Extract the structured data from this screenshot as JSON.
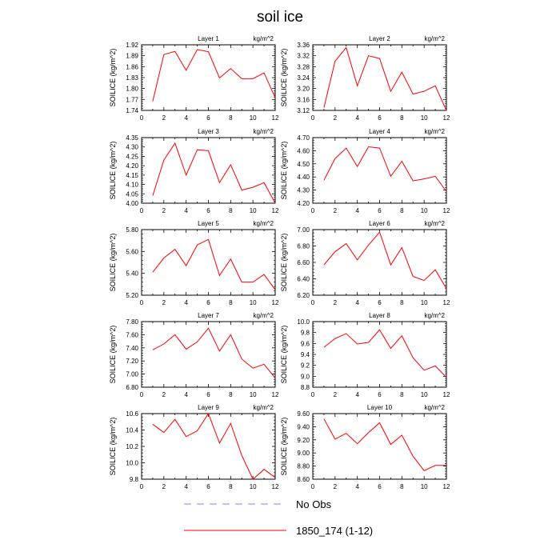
{
  "title": "soil ice",
  "legend": {
    "entries": [
      {
        "label": "No Obs",
        "style": "dashed",
        "color": "#8080ff"
      },
      {
        "label": "1850_174 (1-12)",
        "style": "solid",
        "color": "#ff0000"
      }
    ]
  },
  "chart_data": [
    {
      "type": "line",
      "title": "Layer 1",
      "units": "kg/m^2",
      "ylabel": "SOILICE  (kg/m^2)",
      "xlim": [
        0,
        12
      ],
      "xticks": [
        0,
        2,
        4,
        6,
        8,
        10,
        12
      ],
      "ylim": [
        1.74,
        1.92
      ],
      "yticks": [
        "1.74",
        "1.77",
        "1.80",
        "1.83",
        "1.86",
        "1.89",
        "1.92"
      ],
      "series": [
        {
          "x": [
            1,
            2,
            3,
            4,
            5,
            6,
            7,
            8,
            9,
            10,
            11,
            12
          ],
          "values": [
            1.765,
            1.893,
            1.902,
            1.85,
            1.907,
            1.901,
            1.829,
            1.855,
            1.827,
            1.827,
            1.843,
            1.775
          ]
        }
      ]
    },
    {
      "type": "line",
      "title": "Layer 2",
      "units": "kg/m^2",
      "ylabel": "SOILICE  (kg/m^2)",
      "xlim": [
        0,
        12
      ],
      "xticks": [
        0,
        2,
        4,
        6,
        8,
        10,
        12
      ],
      "ylim": [
        3.12,
        3.36
      ],
      "yticks": [
        "3.12",
        "3.16",
        "3.20",
        "3.24",
        "3.28",
        "3.32",
        "3.36"
      ],
      "series": [
        {
          "x": [
            1,
            2,
            3,
            4,
            5,
            6,
            7,
            8,
            9,
            10,
            11,
            12
          ],
          "values": [
            3.13,
            3.3,
            3.35,
            3.21,
            3.32,
            3.31,
            3.19,
            3.26,
            3.18,
            3.19,
            3.21,
            3.12
          ]
        }
      ]
    },
    {
      "type": "line",
      "title": "Layer 3",
      "units": "kg/m^2",
      "ylabel": "SOILICE  (kg/m^2)",
      "xlim": [
        0,
        12
      ],
      "xticks": [
        0,
        2,
        4,
        6,
        8,
        10,
        12
      ],
      "ylim": [
        4.0,
        4.35
      ],
      "yticks": [
        "4.00",
        "4.05",
        "4.10",
        "4.15",
        "4.20",
        "4.25",
        "4.30",
        "4.35"
      ],
      "series": [
        {
          "x": [
            1,
            2,
            3,
            4,
            5,
            6,
            7,
            8,
            9,
            10,
            11,
            12
          ],
          "values": [
            4.04,
            4.23,
            4.32,
            4.15,
            4.285,
            4.28,
            4.11,
            4.205,
            4.07,
            4.085,
            4.11,
            4.0
          ]
        }
      ]
    },
    {
      "type": "line",
      "title": "Layer 4",
      "units": "kg/m^2",
      "ylabel": "SOILICE  (kg/m^2)",
      "xlim": [
        0,
        12
      ],
      "xticks": [
        0,
        2,
        4,
        6,
        8,
        10,
        12
      ],
      "ylim": [
        4.2,
        4.7
      ],
      "yticks": [
        "4.20",
        "4.30",
        "4.40",
        "4.50",
        "4.60",
        "4.70"
      ],
      "series": [
        {
          "x": [
            1,
            2,
            3,
            4,
            5,
            6,
            7,
            8,
            9,
            10,
            11,
            12
          ],
          "values": [
            4.375,
            4.54,
            4.62,
            4.48,
            4.63,
            4.62,
            4.405,
            4.52,
            4.37,
            4.385,
            4.405,
            4.29
          ]
        }
      ]
    },
    {
      "type": "line",
      "title": "Layer 5",
      "units": "kg/m^2",
      "ylabel": "SOILICE  (kg/m^2)",
      "xlim": [
        0,
        12
      ],
      "xticks": [
        0,
        2,
        4,
        6,
        8,
        10,
        12
      ],
      "ylim": [
        5.2,
        5.8
      ],
      "yticks": [
        "5.20",
        "5.40",
        "5.60",
        "5.80"
      ],
      "series": [
        {
          "x": [
            1,
            2,
            3,
            4,
            5,
            6,
            7,
            8,
            9,
            10,
            11,
            12
          ],
          "values": [
            5.41,
            5.54,
            5.62,
            5.47,
            5.66,
            5.71,
            5.38,
            5.53,
            5.32,
            5.32,
            5.39,
            5.25
          ]
        }
      ]
    },
    {
      "type": "line",
      "title": "Layer 6",
      "units": "kg/m^2",
      "ylabel": "SOILICE  (kg/m^2)",
      "xlim": [
        0,
        12
      ],
      "xticks": [
        0,
        2,
        4,
        6,
        8,
        10,
        12
      ],
      "ylim": [
        6.2,
        7.0
      ],
      "yticks": [
        "6.20",
        "6.40",
        "6.60",
        "6.80",
        "7.00"
      ],
      "series": [
        {
          "x": [
            1,
            2,
            3,
            4,
            5,
            6,
            7,
            8,
            9,
            10,
            11,
            12
          ],
          "values": [
            6.57,
            6.73,
            6.83,
            6.63,
            6.81,
            6.97,
            6.57,
            6.78,
            6.43,
            6.38,
            6.51,
            6.28
          ]
        }
      ]
    },
    {
      "type": "line",
      "title": "Layer 7",
      "units": "kg/m^2",
      "ylabel": "SOILICE  (kg/m^2)",
      "xlim": [
        0,
        12
      ],
      "xticks": [
        0,
        2,
        4,
        6,
        8,
        10,
        12
      ],
      "ylim": [
        6.8,
        7.8
      ],
      "yticks": [
        "6.80",
        "7.00",
        "7.20",
        "7.40",
        "7.60",
        "7.80"
      ],
      "series": [
        {
          "x": [
            1,
            2,
            3,
            4,
            5,
            6,
            7,
            8,
            9,
            10,
            11,
            12
          ],
          "values": [
            7.37,
            7.46,
            7.6,
            7.38,
            7.49,
            7.7,
            7.35,
            7.6,
            7.23,
            7.09,
            7.15,
            6.94
          ]
        }
      ]
    },
    {
      "type": "line",
      "title": "Layer 8",
      "units": "kg/m^2",
      "ylabel": "SOILICE  (kg/m^2)",
      "xlim": [
        0,
        12
      ],
      "xticks": [
        0,
        2,
        4,
        6,
        8,
        10,
        12
      ],
      "ylim": [
        8.8,
        10.0
      ],
      "yticks": [
        "8.8",
        "9.0",
        "9.2",
        "9.4",
        "9.6",
        "9.8",
        "10.0"
      ],
      "series": [
        {
          "x": [
            1,
            2,
            3,
            4,
            5,
            6,
            7,
            8,
            9,
            10,
            11,
            12
          ],
          "values": [
            9.53,
            9.69,
            9.78,
            9.59,
            9.62,
            9.85,
            9.51,
            9.74,
            9.34,
            9.11,
            9.19,
            8.98
          ]
        }
      ]
    },
    {
      "type": "line",
      "title": "Layer 9",
      "units": "kg/m^2",
      "ylabel": "SOILICE  (kg/m^2)",
      "xlim": [
        0,
        12
      ],
      "xticks": [
        0,
        2,
        4,
        6,
        8,
        10,
        12
      ],
      "ylim": [
        9.8,
        10.6
      ],
      "yticks": [
        "9.8",
        "10.0",
        "10.2",
        "10.4",
        "10.6"
      ],
      "series": [
        {
          "x": [
            1,
            2,
            3,
            4,
            5,
            6,
            7,
            8,
            9,
            10,
            11,
            12
          ],
          "values": [
            10.47,
            10.37,
            10.53,
            10.32,
            10.39,
            10.6,
            10.24,
            10.48,
            10.09,
            9.8,
            9.92,
            9.82
          ]
        }
      ]
    },
    {
      "type": "line",
      "title": "Layer 10",
      "units": "kg/m^2",
      "ylabel": "SOILICE  (kg/m^2)",
      "xlim": [
        0,
        12
      ],
      "xticks": [
        0,
        2,
        4,
        6,
        8,
        10,
        12
      ],
      "ylim": [
        8.6,
        9.6
      ],
      "yticks": [
        "8.60",
        "8.80",
        "9.00",
        "9.20",
        "9.40",
        "9.60"
      ],
      "series": [
        {
          "x": [
            1,
            2,
            3,
            4,
            5,
            6,
            7,
            8,
            9,
            10,
            11,
            12
          ],
          "values": [
            9.52,
            9.21,
            9.3,
            9.14,
            9.31,
            9.46,
            9.13,
            9.27,
            8.95,
            8.73,
            8.81,
            8.81
          ]
        }
      ]
    }
  ]
}
